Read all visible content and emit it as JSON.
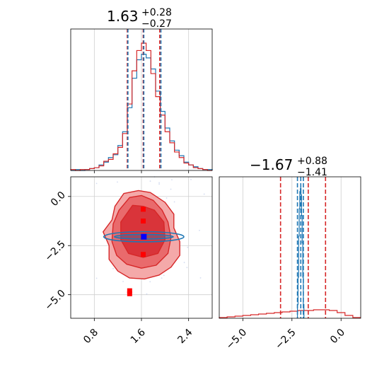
{
  "chart_data": [
    {
      "type": "histogram",
      "panel": "top-left",
      "title": {
        "main": "1.63",
        "plus": "+0.28",
        "minus": "−0.27"
      },
      "xlim": [
        0.4,
        2.8
      ],
      "xticks": [
        0.8,
        1.6,
        2.4
      ],
      "grid": true,
      "colors": {
        "red": "#d62728",
        "blue": "#1f77b4"
      },
      "quantiles_red": [
        1.36,
        1.63,
        1.91
      ],
      "quantiles_blue": [
        1.37,
        1.64,
        1.93
      ],
      "series": [
        {
          "color": "red",
          "x": [
            0.4,
            0.48,
            0.56,
            0.64,
            0.72,
            0.8,
            0.88,
            0.96,
            1.04,
            1.12,
            1.2,
            1.28,
            1.36,
            1.44,
            1.52,
            1.6,
            1.68,
            1.76,
            1.84,
            1.92,
            2.0,
            2.08,
            2.16,
            2.24,
            2.32,
            2.4,
            2.48,
            2.56,
            2.64,
            2.72
          ],
          "counts": [
            1,
            0,
            1,
            1,
            2,
            3,
            5,
            10,
            12,
            18,
            25,
            40,
            72,
            108,
            130,
            138,
            130,
            105,
            80,
            60,
            42,
            30,
            20,
            14,
            8,
            6,
            3,
            2,
            1,
            0
          ]
        },
        {
          "color": "blue",
          "x": [
            0.4,
            0.48,
            0.56,
            0.64,
            0.72,
            0.8,
            0.88,
            0.96,
            1.04,
            1.12,
            1.2,
            1.28,
            1.36,
            1.44,
            1.52,
            1.6,
            1.68,
            1.76,
            1.84,
            1.92,
            2.0,
            2.08,
            2.16,
            2.24,
            2.32,
            2.4,
            2.48,
            2.56,
            2.64,
            2.72
          ],
          "counts": [
            0,
            1,
            0,
            1,
            2,
            3,
            6,
            9,
            14,
            17,
            27,
            42,
            68,
            100,
            120,
            126,
            122,
            110,
            86,
            64,
            46,
            32,
            22,
            16,
            9,
            6,
            4,
            2,
            1,
            1
          ]
        }
      ]
    },
    {
      "type": "scatter",
      "panel": "bottom-left",
      "subtype": "2d-density-contours",
      "xlim": [
        0.4,
        2.8
      ],
      "ylim": [
        -6.2,
        1.0
      ],
      "xticks": [
        0.8,
        1.6,
        2.4
      ],
      "yticks": [
        0.0,
        -2.5,
        -5.0
      ],
      "grid": true,
      "red_points": [
        {
          "x": 1.63,
          "y": -0.65
        },
        {
          "x": 1.63,
          "y": -1.25
        },
        {
          "x": 1.63,
          "y": -2.05
        },
        {
          "x": 1.63,
          "y": -2.95
        },
        {
          "x": 1.4,
          "y": -4.8
        },
        {
          "x": 1.4,
          "y": -4.95
        }
      ],
      "blue_point": {
        "x": 1.64,
        "y": -2.05
      },
      "red_contours": [
        {
          "level": "outer",
          "x": [
            1.3,
            1.55,
            1.75,
            2.0,
            2.15,
            2.15,
            2.25,
            2.25,
            2.1,
            1.9,
            1.65,
            1.4,
            1.2,
            1.05,
            1.05,
            0.95,
            1.1,
            1.15,
            1.3
          ],
          "y": [
            0.15,
            0.3,
            0.2,
            -0.3,
            -0.9,
            -1.6,
            -2.3,
            -3.0,
            -3.6,
            -4.0,
            -4.2,
            -4.15,
            -3.8,
            -3.2,
            -2.5,
            -1.8,
            -1.2,
            -0.5,
            0.15
          ]
        },
        {
          "level": "middle",
          "x": [
            1.4,
            1.6,
            1.8,
            1.95,
            2.05,
            2.1,
            2.05,
            1.85,
            1.6,
            1.35,
            1.18,
            1.1,
            1.12,
            1.22,
            1.4
          ],
          "y": [
            -0.05,
            0.05,
            -0.2,
            -0.7,
            -1.3,
            -2.1,
            -2.9,
            -3.5,
            -3.65,
            -3.45,
            -3.0,
            -2.3,
            -1.4,
            -0.7,
            -0.05
          ]
        },
        {
          "level": "inner",
          "x": [
            1.45,
            1.63,
            1.82,
            1.98,
            2.0,
            1.88,
            1.63,
            1.38,
            1.25,
            1.25,
            1.45
          ],
          "y": [
            -0.45,
            -0.5,
            -0.7,
            -1.3,
            -2.2,
            -2.9,
            -3.1,
            -2.9,
            -2.2,
            -1.3,
            -0.45
          ]
        }
      ],
      "blue_contours": [
        {
          "level": "outer",
          "cx": 1.64,
          "cy": -2.05,
          "rx": 0.68,
          "ry": 0.26
        },
        {
          "level": "inner",
          "cx": 1.64,
          "cy": -2.05,
          "rx": 0.5,
          "ry": 0.12
        }
      ]
    },
    {
      "type": "histogram",
      "panel": "bottom-right",
      "title": {
        "main": "−1.67",
        "plus": "+0.88",
        "minus": "−1.41"
      },
      "xlim": [
        -6.2,
        1.0
      ],
      "xticks": [
        -5.0,
        -2.5,
        0.0
      ],
      "grid": true,
      "quantiles_red": [
        -3.08,
        -1.67,
        -0.79
      ],
      "quantiles_blue": [
        -2.22,
        -2.05,
        -1.92
      ],
      "series": [
        {
          "color": "red",
          "x": [
            -6.2,
            -5.8,
            -5.4,
            -5.0,
            -4.6,
            -4.2,
            -3.8,
            -3.4,
            -3.0,
            -2.6,
            -2.2,
            -1.8,
            -1.4,
            -1.0,
            -0.6,
            -0.2,
            0.2,
            0.6
          ],
          "counts": [
            1,
            2,
            3,
            4,
            5,
            6,
            7,
            8,
            9,
            10,
            11,
            11,
            12,
            12,
            11,
            8,
            4,
            1
          ]
        },
        {
          "color": "blue",
          "x": [
            -2.22,
            -2.19,
            -2.16,
            -2.13,
            -2.1,
            -2.07,
            -2.04,
            -2.01,
            -1.98,
            -1.95,
            -1.92
          ],
          "counts": [
            20,
            60,
            120,
            160,
            185,
            190,
            180,
            150,
            110,
            60,
            20
          ]
        }
      ]
    }
  ]
}
